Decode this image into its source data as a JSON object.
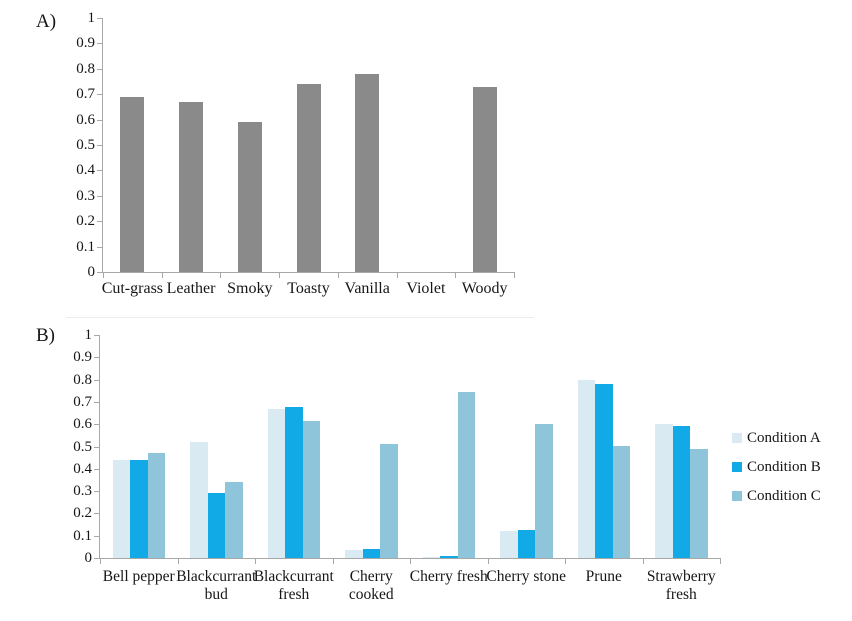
{
  "figure": {
    "background": "#ffffff",
    "text_color": "#161616",
    "axis_color": "#a8a8a8",
    "divider_color": "#ececec"
  },
  "chart_data": [
    {
      "id": "A",
      "panel_label": "A)",
      "type": "bar",
      "title": "",
      "xlabel": "",
      "ylabel": "",
      "categories": [
        "Cut-grass",
        "Leather",
        "Smoky",
        "Toasty",
        "Vanilla",
        "Violet",
        "Woody"
      ],
      "category_label_lines": [
        [
          "Cut-grass"
        ],
        [
          "Leather"
        ],
        [
          "Smoky"
        ],
        [
          "Toasty"
        ],
        [
          "Vanilla"
        ],
        [
          "Violet"
        ],
        [
          "Woody"
        ]
      ],
      "series": [
        {
          "name": "",
          "color": "#8a8a8a",
          "values": [
            0.69,
            0.67,
            0.59,
            0.74,
            0.78,
            0,
            0.73
          ]
        }
      ],
      "ylim": [
        0,
        1
      ],
      "yticks": [
        "1",
        "0.9",
        "0.8",
        "0.7",
        "0.6",
        "0.5",
        "0.4",
        "0.3",
        "0.2",
        "0.1",
        "0"
      ],
      "grid": false,
      "legend": null
    },
    {
      "id": "B",
      "panel_label": "B)",
      "type": "bar",
      "title": "",
      "xlabel": "",
      "ylabel": "",
      "categories": [
        "Bell pepper",
        "Blackcurrant bud",
        "Blackcurrant fresh",
        "Cherry cooked",
        "Cherry fresh",
        "Cherry stone",
        "Prune",
        "Strawberry fresh"
      ],
      "category_label_lines": [
        [
          "Bell pepper"
        ],
        [
          "Blackcurrant",
          "bud"
        ],
        [
          "Blackcurrant",
          "fresh"
        ],
        [
          "Cherry",
          "cooked"
        ],
        [
          "Cherry fresh"
        ],
        [
          "Cherry stone"
        ],
        [
          "Prune"
        ],
        [
          "Strawberry",
          "fresh"
        ]
      ],
      "series": [
        {
          "name": "Condition A",
          "color": "#daeaf3",
          "values": [
            0.44,
            0.52,
            0.67,
            0.035,
            0.005,
            0.12,
            0.8,
            0.6
          ]
        },
        {
          "name": "Condition B",
          "color": "#12aae6",
          "values": [
            0.44,
            0.29,
            0.675,
            0.04,
            0.01,
            0.125,
            0.78,
            0.59
          ]
        },
        {
          "name": "Condition C",
          "color": "#8ec5da",
          "values": [
            0.47,
            0.34,
            0.615,
            0.51,
            0.745,
            0.6,
            0.5,
            0.49
          ]
        }
      ],
      "ylim": [
        0,
        1
      ],
      "yticks": [
        "1",
        "0.9",
        "0.8",
        "0.7",
        "0.6",
        "0.5",
        "0.4",
        "0.3",
        "0.2",
        "0.1",
        "0"
      ],
      "grid": false,
      "legend": {
        "position": "right",
        "entries": [
          "Condition A",
          "Condition B",
          "Condition C"
        ]
      }
    }
  ]
}
